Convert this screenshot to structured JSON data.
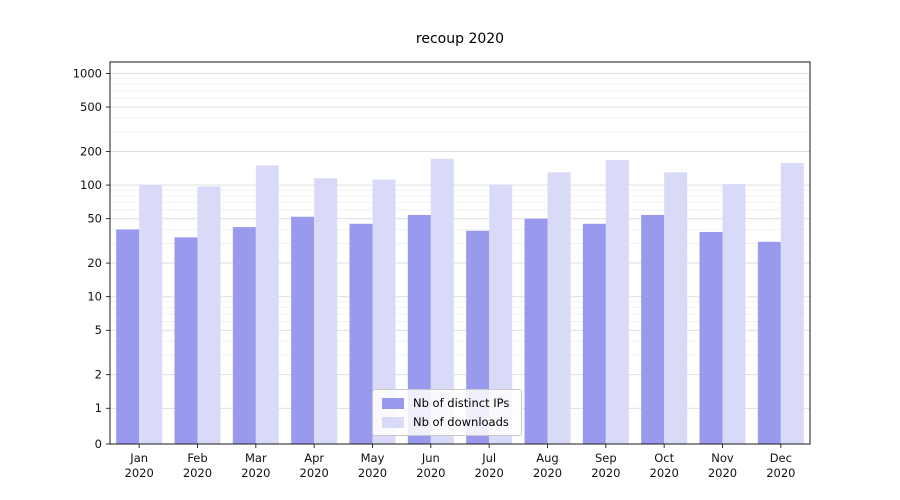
{
  "title": "recoup 2020",
  "chart_data": {
    "type": "bar",
    "title": "recoup 2020",
    "categories": [
      "Jan 2020",
      "Feb 2020",
      "Mar 2020",
      "Apr 2020",
      "May 2020",
      "Jun 2020",
      "Jul 2020",
      "Aug 2020",
      "Sep 2020",
      "Oct 2020",
      "Nov 2020",
      "Dec 2020"
    ],
    "series": [
      {
        "name": "Nb of distinct IPs",
        "color": "#9999ee",
        "values": [
          40,
          34,
          42,
          52,
          45,
          54,
          39,
          50,
          45,
          54,
          38,
          31
        ]
      },
      {
        "name": "Nb of downloads",
        "color": "#d9d9f8",
        "values": [
          100,
          97,
          150,
          115,
          112,
          172,
          101,
          130,
          168,
          130,
          102,
          158
        ]
      }
    ],
    "xlabel": "",
    "ylabel": "",
    "yscale": "symlog",
    "yticks": [
      0,
      1,
      2,
      5,
      10,
      20,
      50,
      100,
      200,
      500,
      1000
    ],
    "ylim": [
      0,
      1300
    ],
    "grid": true,
    "legend_position": "lower center"
  }
}
